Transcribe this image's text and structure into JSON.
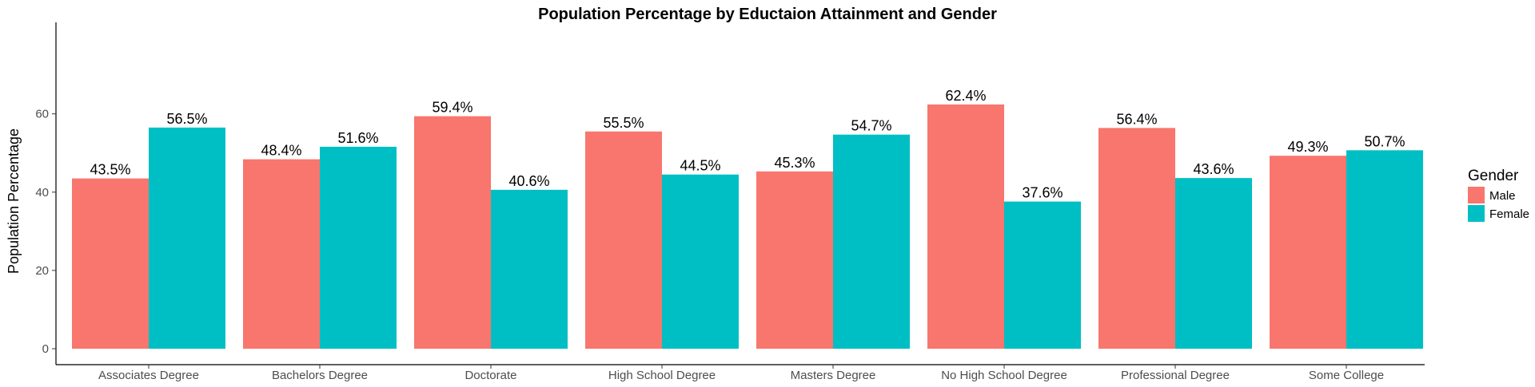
{
  "chart_data": {
    "type": "bar",
    "title": "Population Percentage by Eductaion Attainment and Gender",
    "xlabel": "",
    "ylabel": "Population Percentage",
    "ylim": [
      0,
      65
    ],
    "yticks": [
      0,
      20,
      40,
      60
    ],
    "grid": false,
    "legend": {
      "title": "Gender",
      "placement": "right"
    },
    "categories": [
      "Associates Degree",
      "Bachelors Degree",
      "Doctorate",
      "High School Degree",
      "Masters Degree",
      "No High School Degree",
      "Professional Degree",
      "Some College"
    ],
    "series": [
      {
        "name": "Male",
        "color": "#F8766D",
        "values": [
          43.5,
          48.4,
          59.4,
          55.5,
          45.3,
          62.4,
          56.4,
          49.3
        ],
        "labels": [
          "43.5%",
          "48.4%",
          "59.4%",
          "55.5%",
          "45.3%",
          "62.4%",
          "56.4%",
          "49.3%"
        ]
      },
      {
        "name": "Female",
        "color": "#00BFC4",
        "values": [
          56.5,
          51.6,
          40.6,
          44.5,
          54.7,
          37.6,
          43.6,
          50.7
        ],
        "labels": [
          "56.5%",
          "51.6%",
          "40.6%",
          "44.5%",
          "54.7%",
          "37.6%",
          "43.6%",
          "50.7%"
        ]
      }
    ]
  }
}
